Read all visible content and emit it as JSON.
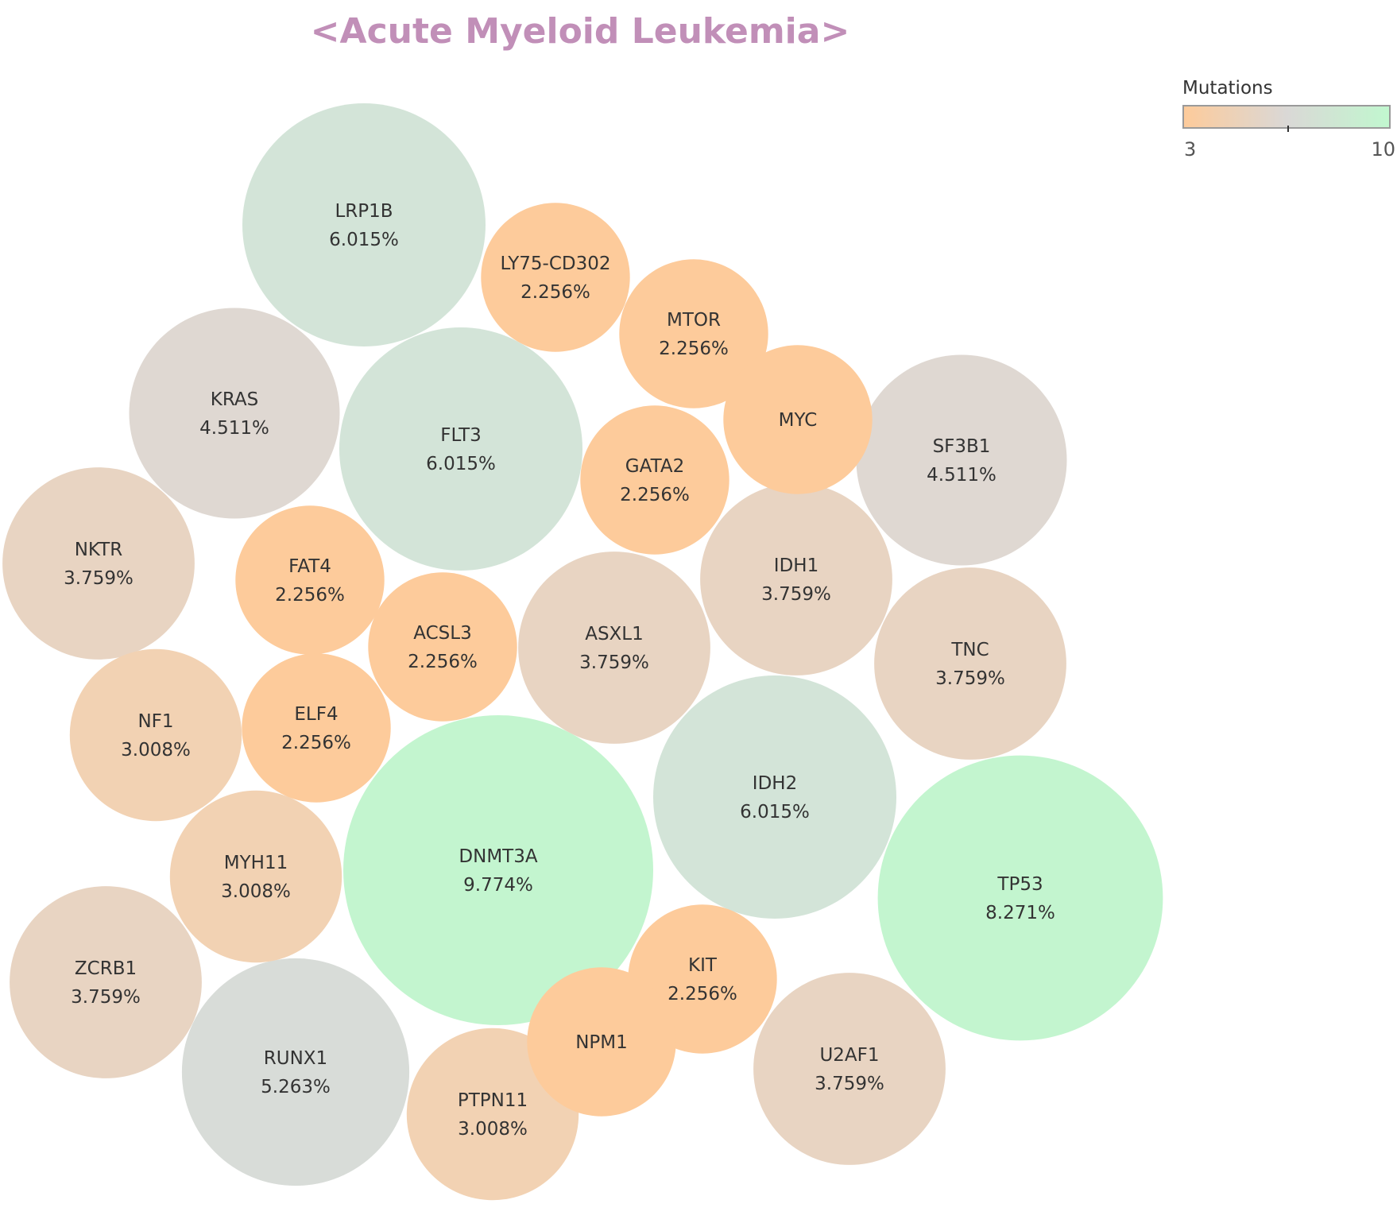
{
  "chart_data": {
    "type": "bubble",
    "title": "<Acute Myeloid Leukemia>",
    "title_color": "#c18fb8",
    "color_legend": {
      "title": "Mutations",
      "min": "3",
      "max": "10",
      "min_color": "#fdcb9b",
      "mid_color": "#dad8d6",
      "max_color": "#c1f7cf"
    },
    "bubbles": [
      {
        "gene": "DNMT3A",
        "percent": "9.774%",
        "mutations": 13,
        "color": "#c3f5cf"
      },
      {
        "gene": "TP53",
        "percent": "8.271%",
        "mutations": 11,
        "color": "#c3f5cf"
      },
      {
        "gene": "LRP1B",
        "percent": "6.015%",
        "mutations": 8,
        "color": "#d3e4d8"
      },
      {
        "gene": "FLT3",
        "percent": "6.015%",
        "mutations": 8,
        "color": "#d3e4d8"
      },
      {
        "gene": "IDH2",
        "percent": "6.015%",
        "mutations": 8,
        "color": "#d3e4d8"
      },
      {
        "gene": "RUNX1",
        "percent": "5.263%",
        "mutations": 7,
        "color": "#d8dcd8"
      },
      {
        "gene": "KRAS",
        "percent": "4.511%",
        "mutations": 6,
        "color": "#dfd8d2"
      },
      {
        "gene": "SF3B1",
        "percent": "4.511%",
        "mutations": 6,
        "color": "#dfd8d2"
      },
      {
        "gene": "NKTR",
        "percent": "3.759%",
        "mutations": 5,
        "color": "#e8d4c2"
      },
      {
        "gene": "IDH1",
        "percent": "3.759%",
        "mutations": 5,
        "color": "#e8d4c2"
      },
      {
        "gene": "ASXL1",
        "percent": "3.759%",
        "mutations": 5,
        "color": "#e8d4c2"
      },
      {
        "gene": "TNC",
        "percent": "3.759%",
        "mutations": 5,
        "color": "#e8d4c2"
      },
      {
        "gene": "ZCRB1",
        "percent": "3.759%",
        "mutations": 5,
        "color": "#e8d4c2"
      },
      {
        "gene": "U2AF1",
        "percent": "3.759%",
        "mutations": 5,
        "color": "#e8d4c2"
      },
      {
        "gene": "NF1",
        "percent": "3.008%",
        "mutations": 4,
        "color": "#f2d2b3"
      },
      {
        "gene": "MYH11",
        "percent": "3.008%",
        "mutations": 4,
        "color": "#f2d2b3"
      },
      {
        "gene": "PTPN11",
        "percent": "3.008%",
        "mutations": 4,
        "color": "#f2d2b3"
      },
      {
        "gene": "LY75-CD302",
        "percent": "2.256%",
        "mutations": 3,
        "color": "#fdcb9b"
      },
      {
        "gene": "MTOR",
        "percent": "2.256%",
        "mutations": 3,
        "color": "#fdcb9b"
      },
      {
        "gene": "GATA2",
        "percent": "2.256%",
        "mutations": 3,
        "color": "#fdcb9b"
      },
      {
        "gene": "FAT4",
        "percent": "2.256%",
        "mutations": 3,
        "color": "#fdcb9b"
      },
      {
        "gene": "ACSL3",
        "percent": "2.256%",
        "mutations": 3,
        "color": "#fdcb9b"
      },
      {
        "gene": "ELF4",
        "percent": "2.256%",
        "mutations": 3,
        "color": "#fdcb9b"
      },
      {
        "gene": "KIT",
        "percent": "2.256%",
        "mutations": 3,
        "color": "#fdcb9b"
      },
      {
        "gene": "MYC",
        "percent": "",
        "mutations": 3,
        "color": "#fdcb9b"
      },
      {
        "gene": "NPM1",
        "percent": "",
        "mutations": 3,
        "color": "#fdcb9b"
      }
    ]
  }
}
